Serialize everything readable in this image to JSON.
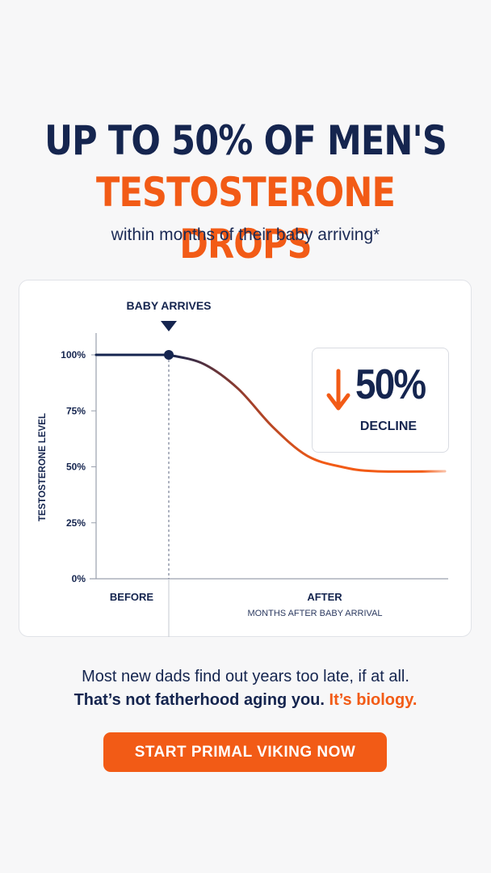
{
  "headline": {
    "line1": "UP TO 50% OF MEN'S",
    "line2": "TESTOSTERONE DROPS",
    "subtitle": "within months of their baby arriving*"
  },
  "chart_data": {
    "type": "line",
    "title": "",
    "xlabel": "MONTHS AFTER BABY ARRIVAL",
    "ylabel": "TESTOSTERONE LEVEL",
    "y_ticks": [
      "100%",
      "75%",
      "50%",
      "25%",
      "0%"
    ],
    "ylim": [
      0,
      100
    ],
    "x_regions": [
      "BEFORE",
      "AFTER"
    ],
    "event_marker": "BABY ARRIVES",
    "series": [
      {
        "values_description": "level",
        "points": [
          {
            "x": -1,
            "y": 100
          },
          {
            "x": 0,
            "y": 100
          },
          {
            "x": 0.5,
            "y": 96
          },
          {
            "x": 1,
            "y": 85
          },
          {
            "x": 1.5,
            "y": 68
          },
          {
            "x": 2,
            "y": 55
          },
          {
            "x": 2.5,
            "y": 50
          },
          {
            "x": 3,
            "y": 48
          },
          {
            "x": 4,
            "y": 48
          }
        ]
      }
    ],
    "callout": {
      "value": "50%",
      "label": "DECLINE",
      "direction": "down"
    },
    "grid": false,
    "colors": {
      "before": "#15254f",
      "after": "#f25b16",
      "axis": "#9aa0ad"
    }
  },
  "body": {
    "line1": "Most new dads find out years too late, if at all.",
    "line2_main": "That’s not fatherhood aging you.",
    "line2_accent": "It’s biology."
  },
  "cta": {
    "label": "START PRIMAL VIKING NOW"
  }
}
